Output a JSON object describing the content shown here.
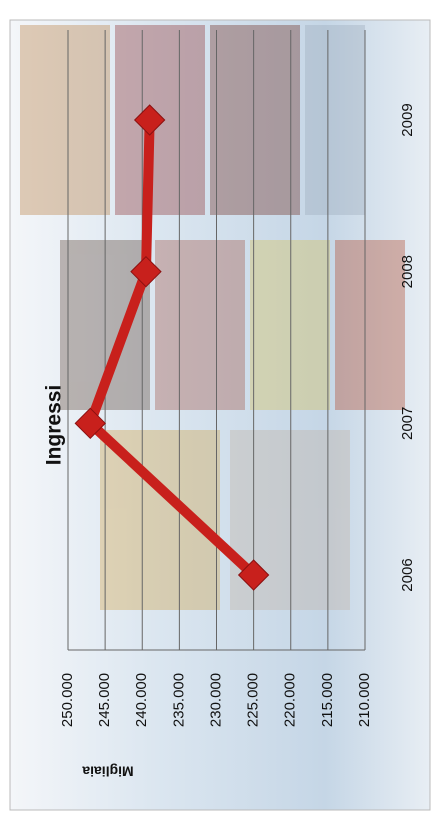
{
  "chart_data": {
    "type": "line",
    "title": "Ingressi",
    "y_label": "Migliaia",
    "categories": [
      "2006",
      "2007",
      "2008",
      "2009"
    ],
    "series": [
      {
        "name": "Ingressi",
        "color": "#c8201c",
        "values": [
          225000,
          247000,
          239500,
          239000
        ]
      }
    ],
    "ylim": [
      210000,
      250000
    ],
    "yticks": [
      {
        "value": 210000,
        "label": "210.000"
      },
      {
        "value": 215000,
        "label": "215.000"
      },
      {
        "value": 220000,
        "label": "220.000"
      },
      {
        "value": 225000,
        "label": "225.000"
      },
      {
        "value": 230000,
        "label": "230.000"
      },
      {
        "value": 235000,
        "label": "235.000"
      },
      {
        "value": 240000,
        "label": "240.000"
      },
      {
        "value": 245000,
        "label": "245.000"
      },
      {
        "value": 250000,
        "label": "250.000"
      }
    ],
    "grid": true
  }
}
